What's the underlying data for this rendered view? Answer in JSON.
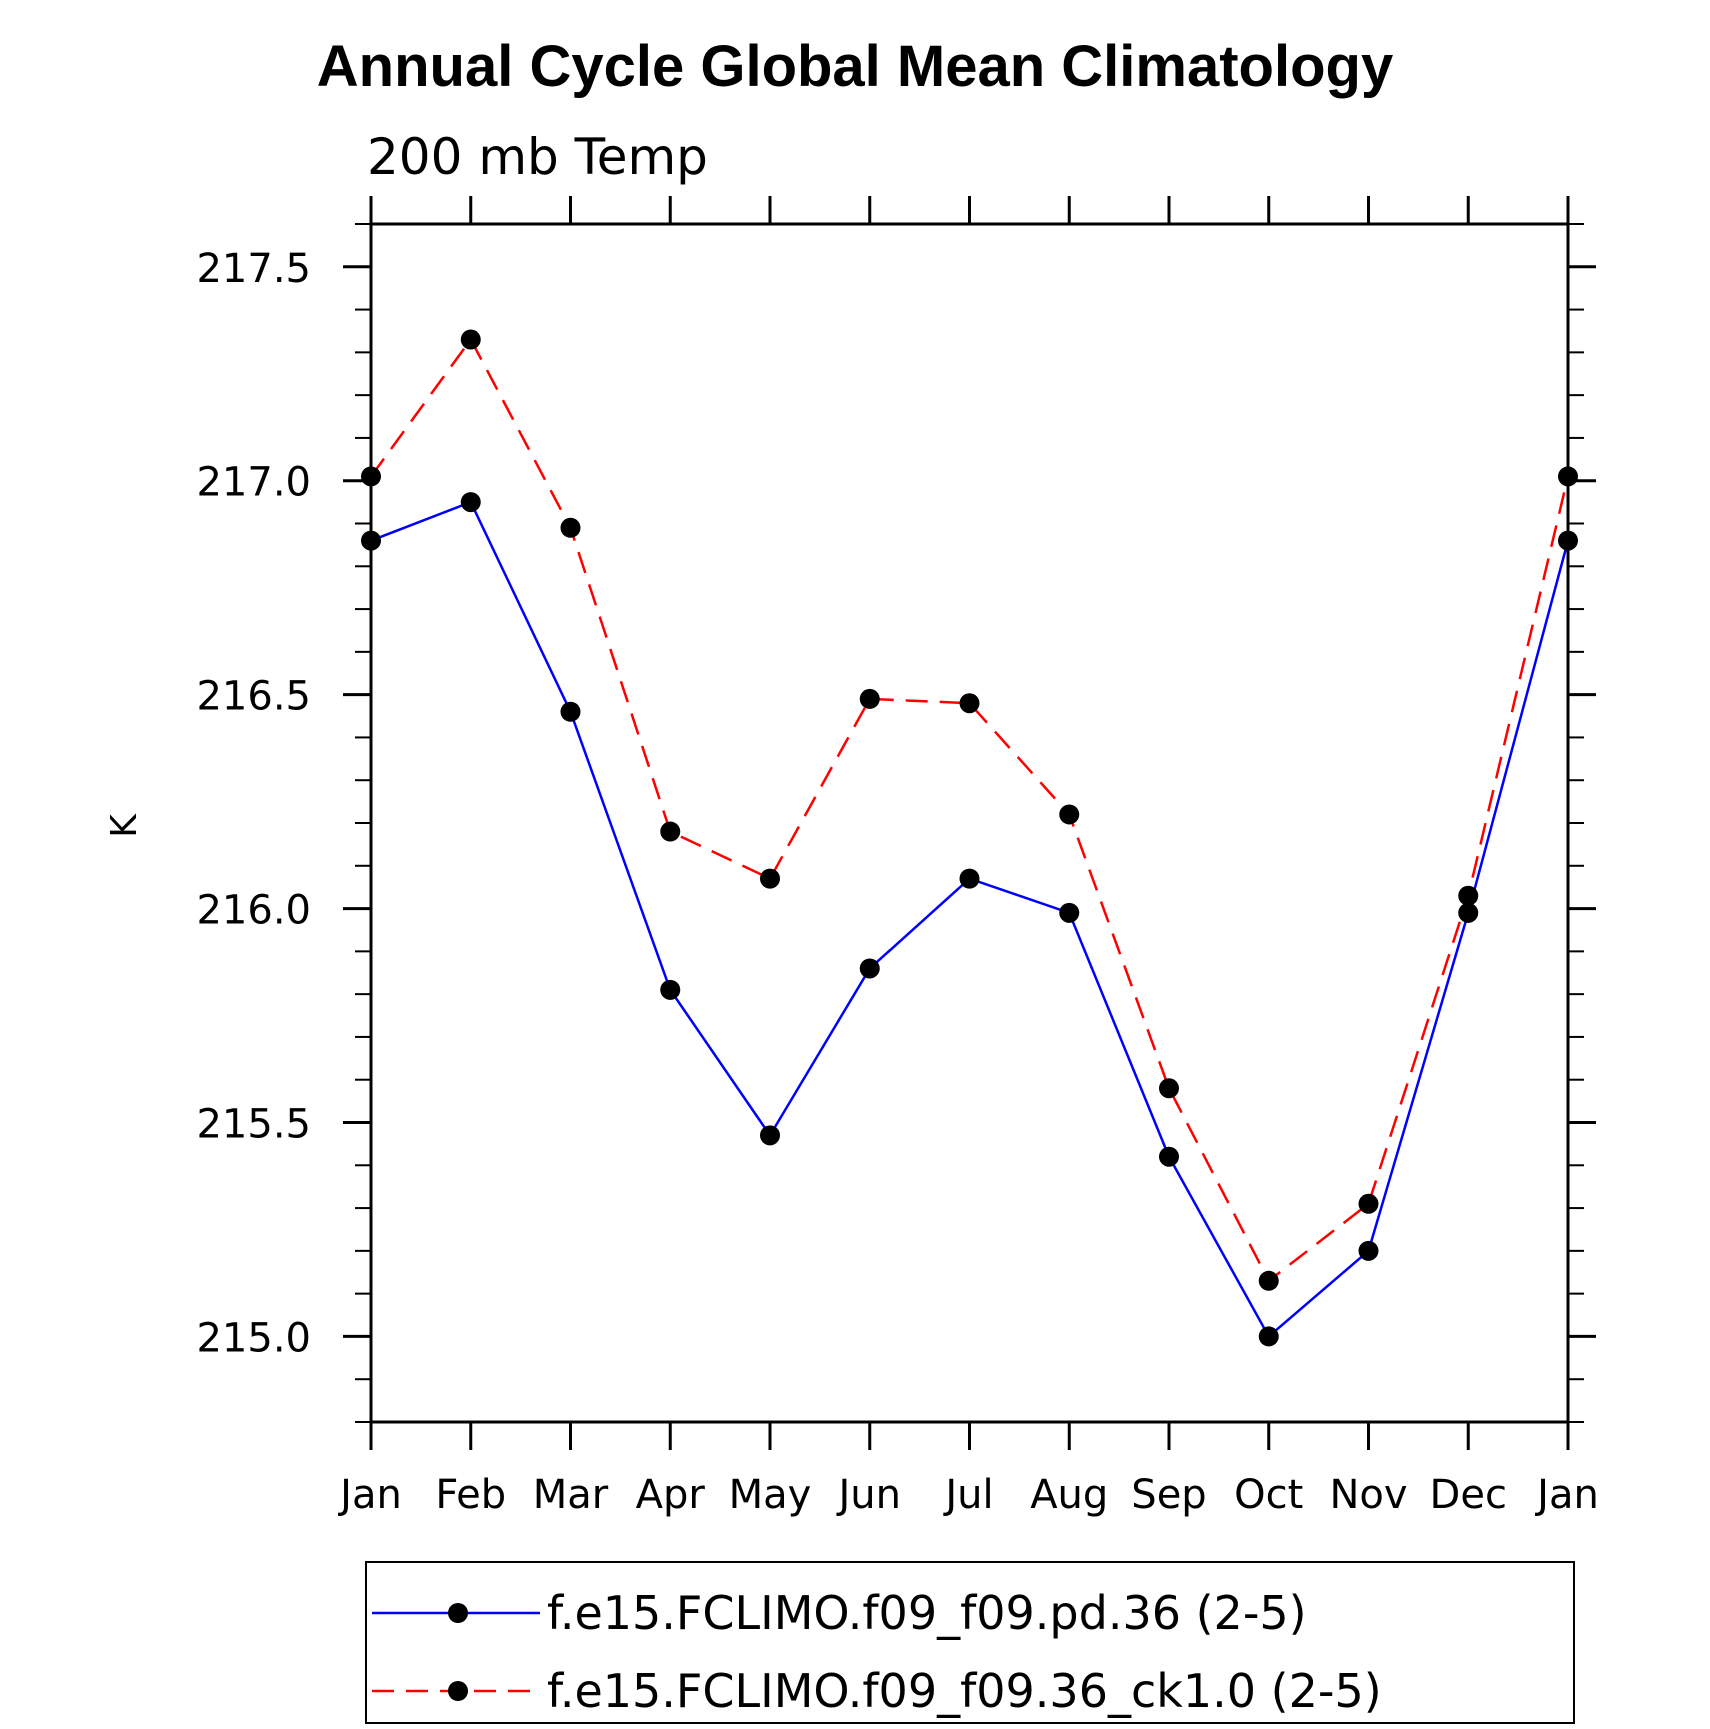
{
  "chart_data": {
    "type": "line",
    "title": "Annual Cycle Global Mean Climatology",
    "subtitle": "200 mb Temp",
    "xlabel": "",
    "ylabel": "K",
    "categories": [
      "Jan",
      "Feb",
      "Mar",
      "Apr",
      "May",
      "Jun",
      "Jul",
      "Aug",
      "Sep",
      "Oct",
      "Nov",
      "Dec",
      "Jan"
    ],
    "ylim": [
      214.8,
      217.6
    ],
    "yticks": [
      "215.0",
      "215.5",
      "216.0",
      "216.5",
      "217.0",
      "217.5"
    ],
    "ytick_values": [
      215.0,
      215.5,
      216.0,
      216.5,
      217.0,
      217.5
    ],
    "grid": false,
    "legend_position": "bottom",
    "series": [
      {
        "name": "f.e15.FCLIMO.f09_f09.pd.36 (2-5)",
        "color": "#0000ff",
        "dash": "solid",
        "marker": "filled-circle",
        "values": [
          216.86,
          216.95,
          216.46,
          215.81,
          215.47,
          215.86,
          216.07,
          215.99,
          215.42,
          215.0,
          215.2,
          215.99,
          216.86
        ]
      },
      {
        "name": "f.e15.FCLIMO.f09_f09.36_ck1.0 (2-5)",
        "color": "#ff0000",
        "dash": "dashed",
        "marker": "filled-circle",
        "values": [
          217.01,
          217.33,
          216.89,
          216.18,
          216.07,
          216.49,
          216.48,
          216.22,
          215.58,
          215.13,
          215.31,
          216.03,
          217.01
        ]
      }
    ]
  }
}
